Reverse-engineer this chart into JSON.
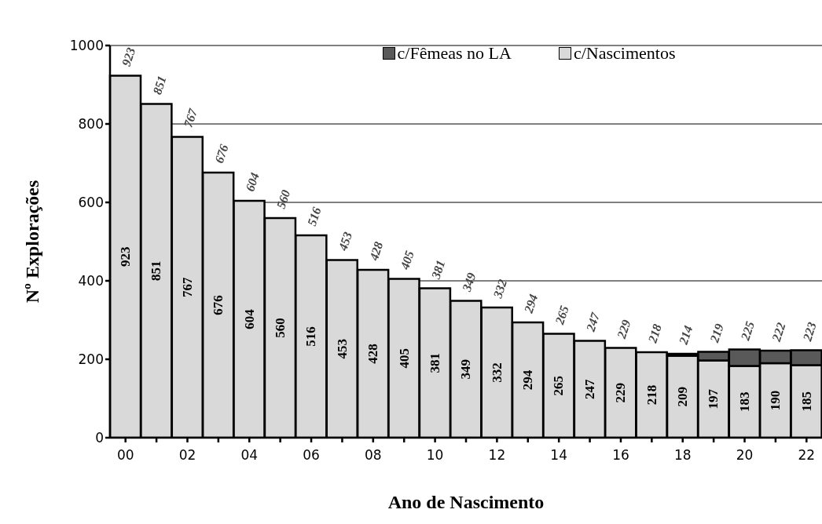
{
  "chart_data": {
    "type": "bar",
    "stacked": true,
    "xlabel": "Ano de Nascimento",
    "ylabel": "Nº Explorações",
    "categories": [
      "00",
      null,
      "02",
      null,
      "04",
      null,
      "06",
      null,
      "08",
      null,
      "10",
      null,
      "12",
      null,
      "14",
      null,
      "16",
      null,
      "18",
      null,
      "20",
      null,
      "22"
    ],
    "series": [
      {
        "name": "c/Nascimentos",
        "color": "#d9d9d9",
        "values": [
          923,
          851,
          767,
          676,
          604,
          560,
          516,
          453,
          428,
          405,
          381,
          349,
          332,
          294,
          265,
          247,
          229,
          218,
          209,
          197,
          183,
          190,
          185
        ],
        "value_labels": [
          "923",
          "851",
          "767",
          "676",
          "604",
          "560",
          "516",
          "453",
          "428",
          "405",
          "381",
          "349",
          "332",
          "294",
          "265",
          "247",
          "229",
          "218",
          "209",
          "197",
          "183",
          "190",
          "185"
        ]
      },
      {
        "name": "c/Fêmeas no LA",
        "color": "#595959",
        "values": [
          0,
          0,
          0,
          0,
          0,
          0,
          0,
          0,
          0,
          0,
          0,
          0,
          0,
          0,
          0,
          0,
          0,
          0,
          5,
          22,
          42,
          32,
          38
        ]
      }
    ],
    "totals": [
      "923",
      "851",
      "767",
      "676",
      "604",
      "560",
      "516",
      "453",
      "428",
      "405",
      "381",
      "349",
      "332",
      "294",
      "265",
      "247",
      "229",
      "218",
      "214",
      "219",
      "225",
      "222",
      "223"
    ],
    "ylim": [
      0,
      1000
    ],
    "yticks": [
      0,
      200,
      400,
      600,
      800,
      1000
    ],
    "grid": "y",
    "legend": "top"
  }
}
